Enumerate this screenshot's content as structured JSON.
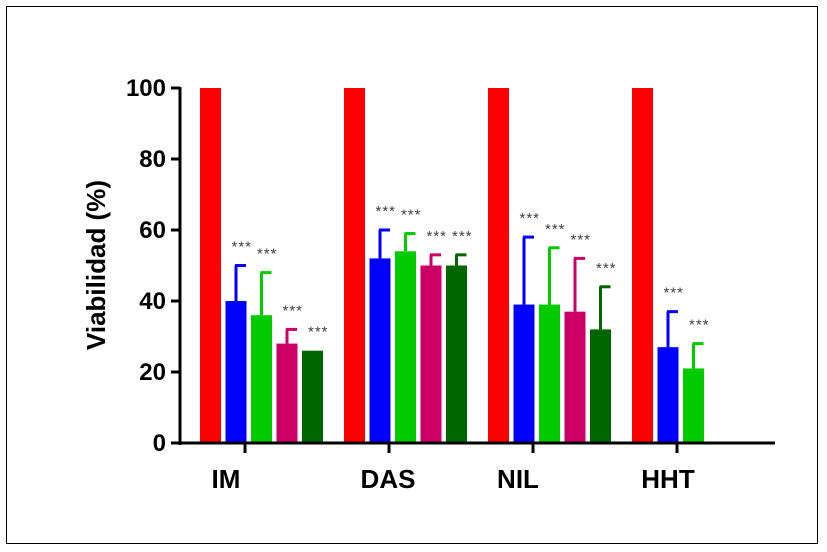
{
  "chart_data": {
    "type": "bar",
    "title": "",
    "xlabel": "",
    "ylabel": "Viabilidad (%)",
    "ylim": [
      0,
      100
    ],
    "yticks": [
      0,
      20,
      40,
      60,
      80,
      100
    ],
    "grid": false,
    "legend": "none",
    "categories": [
      "IM",
      "DAS",
      "NIL",
      "HHT"
    ],
    "series": [
      {
        "color": "#ff0000",
        "values": [
          100,
          100,
          100,
          100
        ],
        "errors": [
          0,
          0,
          0,
          0
        ],
        "labels": [
          "",
          "",
          "",
          ""
        ]
      },
      {
        "color": "#0000ff",
        "values": [
          40,
          52,
          39,
          27
        ],
        "errors": [
          10,
          8,
          19,
          10
        ],
        "labels": [
          "***",
          "***",
          "***",
          "***"
        ]
      },
      {
        "color": "#00cc00",
        "values": [
          36,
          54,
          39,
          21
        ],
        "errors": [
          12,
          5,
          16,
          7
        ],
        "labels": [
          "***",
          "***",
          "***",
          "***"
        ]
      },
      {
        "color": "#cc0066",
        "values": [
          28,
          50,
          37,
          null
        ],
        "errors": [
          4,
          3,
          15,
          null
        ],
        "labels": [
          "***",
          "***",
          "***",
          ""
        ]
      },
      {
        "color": "#006600",
        "values": [
          26,
          50,
          32,
          null
        ],
        "errors": [
          0,
          3,
          12,
          null
        ],
        "labels": [
          "***",
          "***",
          "***",
          ""
        ]
      }
    ]
  }
}
